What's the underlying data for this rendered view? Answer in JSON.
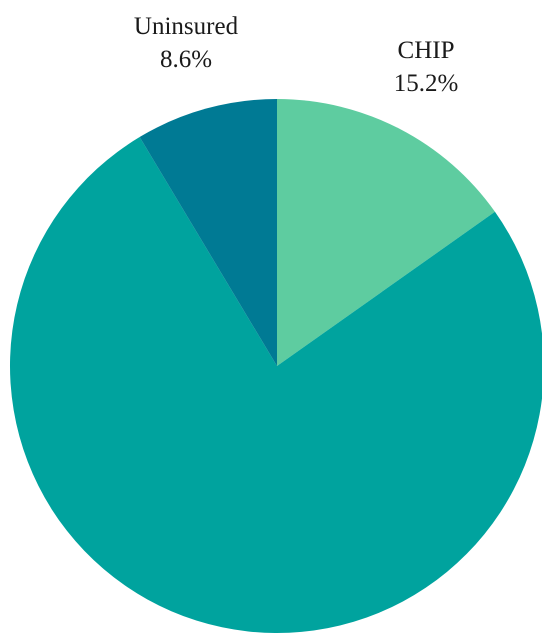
{
  "chart_data": {
    "type": "pie",
    "title": "",
    "start_angle_deg": 0,
    "direction": "clockwise",
    "slices": [
      {
        "label": "CHIP",
        "value": 15.2,
        "value_label": "15.2%",
        "color": "#5ecca0",
        "show_label": true
      },
      {
        "label": "",
        "value": 76.2,
        "value_label": "",
        "color": "#00a39e",
        "show_label": false
      },
      {
        "label": "Uninsured",
        "value": 8.6,
        "value_label": "8.6%",
        "color": "#007a94",
        "show_label": true
      }
    ]
  }
}
